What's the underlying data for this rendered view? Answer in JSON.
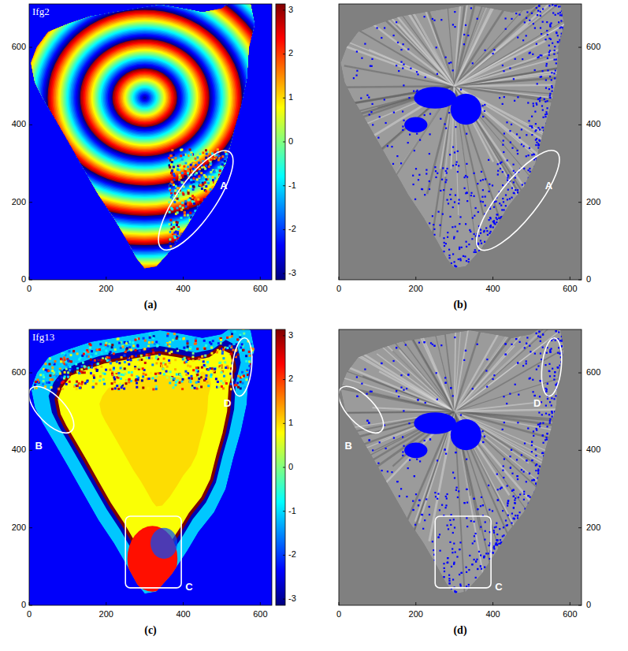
{
  "chart_data": [
    {
      "type": "heatmap",
      "title": "Ifg2",
      "caption": "(a)",
      "xlim": [
        0,
        630
      ],
      "ylim": [
        0,
        712
      ],
      "xticks": [
        0,
        200,
        400,
        600
      ],
      "yticks": [
        0,
        200,
        400,
        600
      ],
      "colorbar": {
        "lim": [
          -3.1416,
          3.1416
        ],
        "ticks": [
          -3,
          -2,
          -1,
          0,
          1,
          2,
          3
        ]
      },
      "annotations": [
        {
          "label": "A",
          "shape": "ellipse",
          "from": [
            345,
            80
          ],
          "to": [
            520,
            330
          ],
          "half_width": 50,
          "label_at": [
            505,
            240
          ]
        }
      ]
    },
    {
      "type": "image",
      "caption": "(b)",
      "xlim": [
        0,
        630
      ],
      "ylim": [
        0,
        712
      ],
      "xticks": [
        0,
        200,
        400,
        600
      ],
      "yticks": [
        0,
        200,
        400,
        600
      ],
      "annotations": [
        {
          "label": "A",
          "shape": "ellipse",
          "from": [
            365,
            80
          ],
          "to": [
            565,
            330
          ],
          "half_width": 50,
          "label_at": [
            545,
            240
          ]
        }
      ]
    },
    {
      "type": "heatmap",
      "title": "Ifg13",
      "caption": "(c)",
      "xlim": [
        0,
        630
      ],
      "ylim": [
        0,
        712
      ],
      "xticks": [
        0,
        200,
        400,
        600
      ],
      "yticks": [
        0,
        200,
        400,
        600
      ],
      "colorbar": {
        "lim": [
          -3.1416,
          3.1416
        ],
        "ticks": [
          -3,
          -2,
          -1,
          0,
          1,
          2,
          3
        ]
      },
      "annotations": [
        {
          "label": "B",
          "shape": "ellipse",
          "from": [
            5,
            560
          ],
          "to": [
            110,
            450
          ],
          "half_width": 35,
          "label_at": [
            25,
            410
          ]
        },
        {
          "label": "C",
          "shape": "rect",
          "from": [
            250,
            45
          ],
          "to": [
            395,
            230
          ],
          "label_at": [
            415,
            45
          ]
        },
        {
          "label": "D",
          "shape": "ellipse",
          "from": [
            545,
            540
          ],
          "to": [
            560,
            690
          ],
          "half_width": 25,
          "label_at": [
            515,
            520
          ]
        }
      ]
    },
    {
      "type": "image",
      "caption": "(d)",
      "xlim": [
        0,
        630
      ],
      "ylim": [
        0,
        712
      ],
      "xticks": [
        0,
        200,
        400,
        600
      ],
      "yticks": [
        0,
        200,
        400,
        600
      ],
      "annotations": [
        {
          "label": "B",
          "shape": "ellipse",
          "from": [
            5,
            560
          ],
          "to": [
            110,
            450
          ],
          "half_width": 35,
          "label_at": [
            25,
            410
          ]
        },
        {
          "label": "C",
          "shape": "rect",
          "from": [
            250,
            45
          ],
          "to": [
            395,
            230
          ],
          "label_at": [
            415,
            45
          ]
        },
        {
          "label": "D",
          "shape": "ellipse",
          "from": [
            545,
            540
          ],
          "to": [
            560,
            690
          ],
          "half_width": 25,
          "label_at": [
            515,
            520
          ]
        }
      ]
    }
  ]
}
